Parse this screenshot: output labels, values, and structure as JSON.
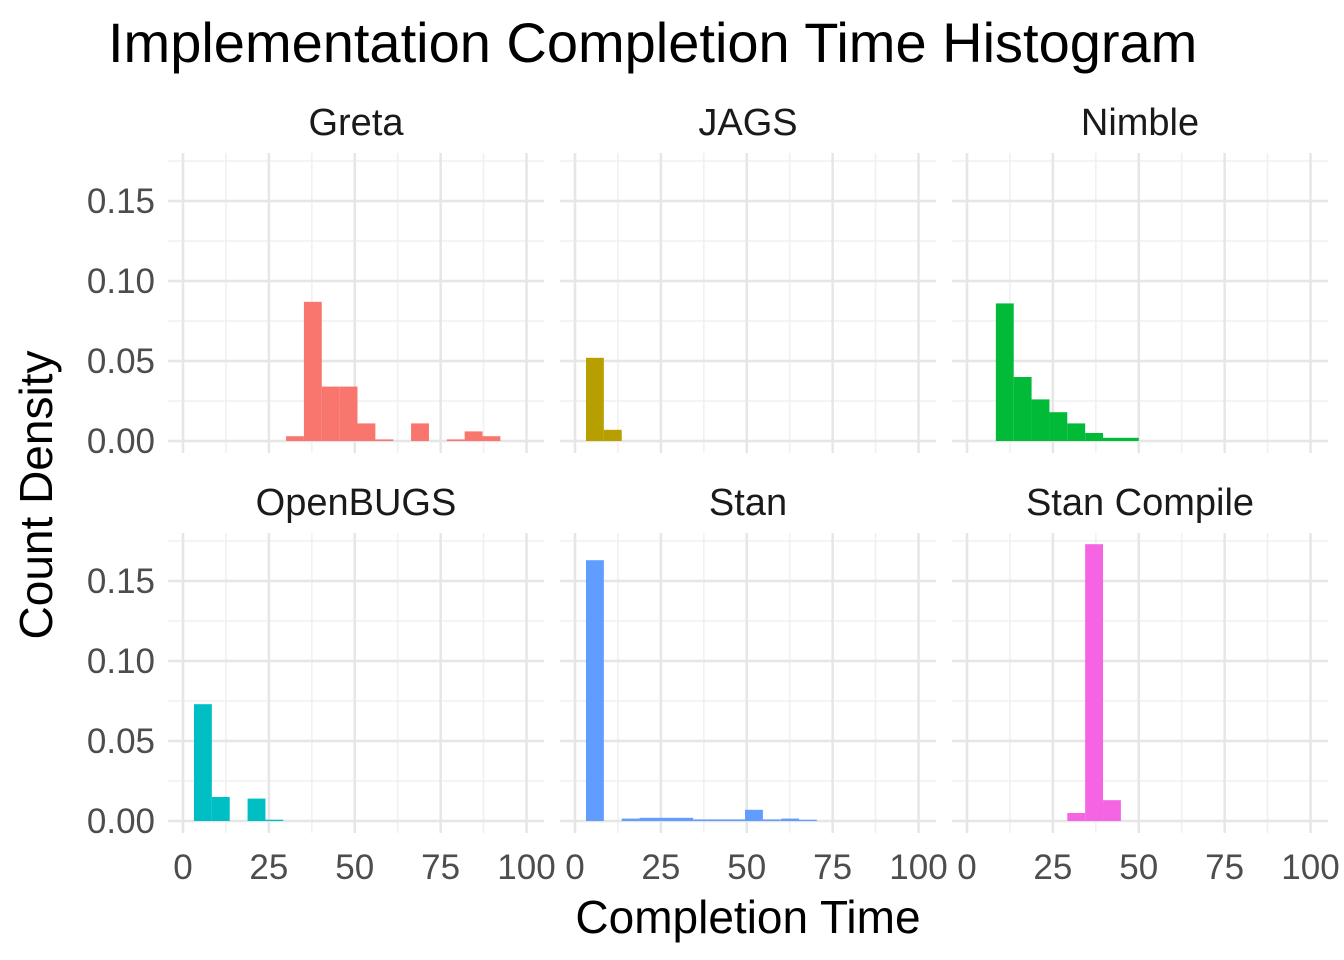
{
  "chart_data": {
    "type": "bar",
    "title": "Implementation Completion Time Histogram",
    "xlabel": "Completion Time",
    "ylabel": "Count Density",
    "xlim": [
      0,
      100
    ],
    "ylim": [
      0,
      0.18
    ],
    "x_ticks": [
      "0",
      "25",
      "50",
      "75",
      "100"
    ],
    "y_ticks": [
      "0.00",
      "0.05",
      "0.10",
      "0.15"
    ],
    "grid": true,
    "bin_width": 5.2,
    "layout": "2 rows x 3 columns, shared axes",
    "panels": [
      {
        "name": "Greta",
        "color": "#F8766D",
        "bins": [
          {
            "x0": 30.0,
            "x1": 35.2,
            "value": 0.003
          },
          {
            "x0": 35.2,
            "x1": 40.4,
            "value": 0.087
          },
          {
            "x0": 40.4,
            "x1": 45.6,
            "value": 0.034
          },
          {
            "x0": 45.6,
            "x1": 50.8,
            "value": 0.034
          },
          {
            "x0": 50.8,
            "x1": 56.0,
            "value": 0.011
          },
          {
            "x0": 56.0,
            "x1": 61.2,
            "value": 0.001
          },
          {
            "x0": 66.4,
            "x1": 71.6,
            "value": 0.011
          },
          {
            "x0": 76.8,
            "x1": 82.0,
            "value": 0.001
          },
          {
            "x0": 82.0,
            "x1": 87.2,
            "value": 0.006
          },
          {
            "x0": 87.2,
            "x1": 92.4,
            "value": 0.003
          }
        ]
      },
      {
        "name": "JAGS",
        "color": "#B79F00",
        "bins": [
          {
            "x0": 3.2,
            "x1": 8.4,
            "value": 0.052
          },
          {
            "x0": 8.4,
            "x1": 13.6,
            "value": 0.007
          }
        ]
      },
      {
        "name": "Nimble",
        "color": "#00BA38",
        "bins": [
          {
            "x0": 8.4,
            "x1": 13.6,
            "value": 0.086
          },
          {
            "x0": 13.6,
            "x1": 18.8,
            "value": 0.04
          },
          {
            "x0": 18.8,
            "x1": 24.0,
            "value": 0.026
          },
          {
            "x0": 24.0,
            "x1": 29.2,
            "value": 0.018
          },
          {
            "x0": 29.2,
            "x1": 34.4,
            "value": 0.011
          },
          {
            "x0": 34.4,
            "x1": 39.6,
            "value": 0.005
          },
          {
            "x0": 39.6,
            "x1": 50.0,
            "value": 0.002
          }
        ]
      },
      {
        "name": "OpenBUGS",
        "color": "#00BFC4",
        "bins": [
          {
            "x0": 3.2,
            "x1": 8.4,
            "value": 0.073
          },
          {
            "x0": 8.4,
            "x1": 13.6,
            "value": 0.015
          },
          {
            "x0": 18.8,
            "x1": 24.0,
            "value": 0.014
          },
          {
            "x0": 24.0,
            "x1": 29.2,
            "value": 0.0008
          }
        ]
      },
      {
        "name": "Stan",
        "color": "#619CFF",
        "bins": [
          {
            "x0": 3.2,
            "x1": 8.4,
            "value": 0.163
          },
          {
            "x0": 13.6,
            "x1": 18.8,
            "value": 0.0015
          },
          {
            "x0": 18.8,
            "x1": 34.4,
            "value": 0.002
          },
          {
            "x0": 34.4,
            "x1": 49.5,
            "value": 0.001
          },
          {
            "x0": 49.5,
            "x1": 54.7,
            "value": 0.007
          },
          {
            "x0": 54.7,
            "x1": 59.9,
            "value": 0.001
          },
          {
            "x0": 60.0,
            "x1": 65.2,
            "value": 0.0015
          },
          {
            "x0": 65.2,
            "x1": 70.4,
            "value": 0.0008
          }
        ]
      },
      {
        "name": "Stan Compile",
        "color": "#F564E3",
        "bins": [
          {
            "x0": 29.2,
            "x1": 34.4,
            "value": 0.005
          },
          {
            "x0": 34.4,
            "x1": 39.6,
            "value": 0.173
          },
          {
            "x0": 39.6,
            "x1": 44.8,
            "value": 0.013
          }
        ]
      }
    ]
  }
}
